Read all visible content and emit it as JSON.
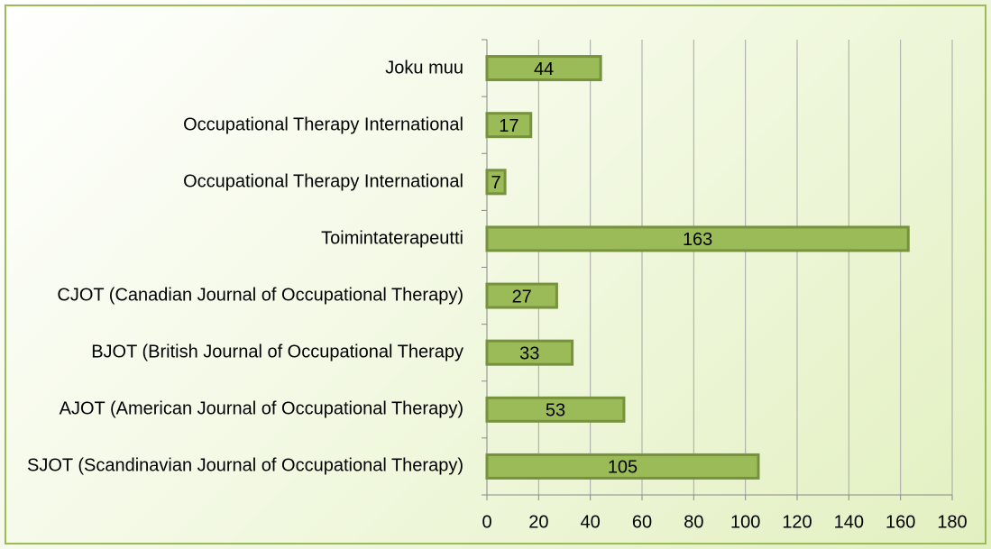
{
  "chart_data": {
    "type": "barh",
    "categories": [
      "SJOT (Scandinavian Journal of Occupational Therapy)",
      "AJOT (American Journal of Occupational Therapy)",
      "BJOT (British Journal of Occupational Therapy",
      "CJOT (Canadian Journal of Occupational Therapy)",
      "Toimintaterapeutti",
      "Occupational Therapy International",
      "Occupational Therapy International",
      "Joku muu"
    ],
    "values": [
      105,
      53,
      33,
      27,
      163,
      7,
      17,
      44
    ],
    "color": "#9bbb59",
    "edge_color": "#76923c",
    "xlim": [
      0,
      180
    ],
    "xticks": [
      0,
      20,
      40,
      60,
      80,
      100,
      120,
      140,
      160,
      180
    ],
    "grid": true
  }
}
